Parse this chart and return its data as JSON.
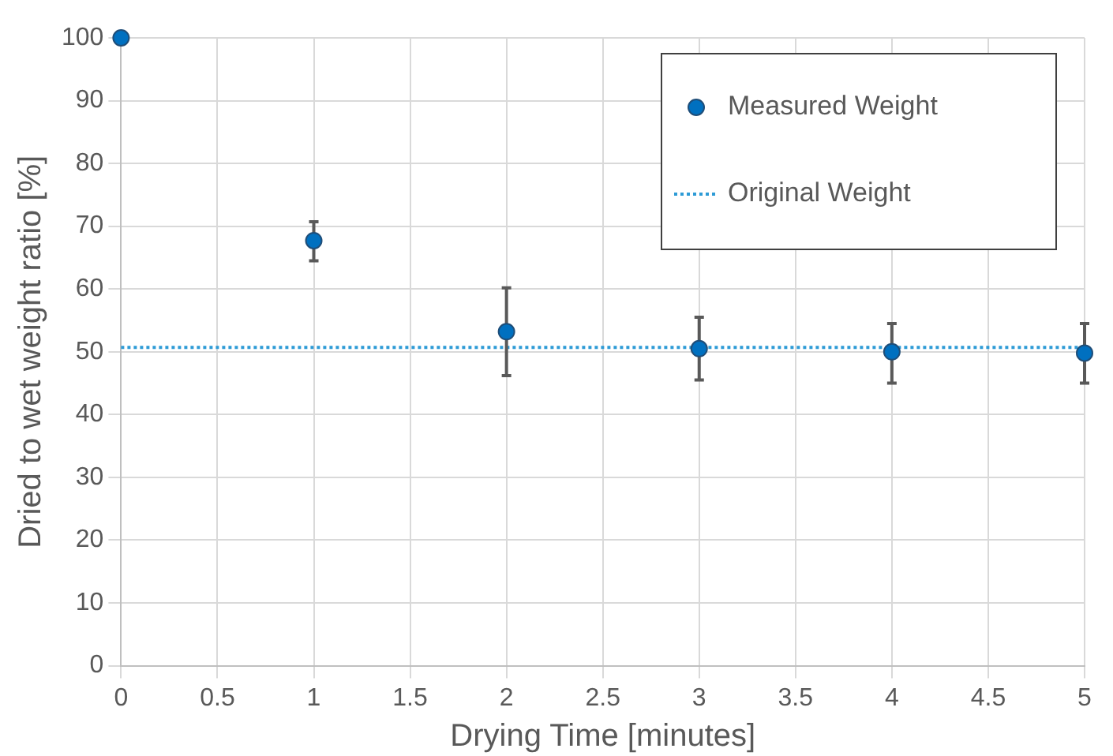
{
  "chart_data": {
    "type": "scatter",
    "xlabel": "Drying Time [minutes]",
    "ylabel": "Dried to wet weight ratio [%]",
    "x": [
      0,
      1,
      2,
      3,
      4,
      5
    ],
    "series": [
      {
        "name": "Measured Weight",
        "color": "#0070c0",
        "values": [
          100,
          67.7,
          53.2,
          50.5,
          50.0,
          49.8
        ],
        "errors": [
          null,
          [
            64.5,
            70.7
          ],
          [
            46.2,
            60.2
          ],
          [
            45.5,
            55.5
          ],
          [
            45.0,
            54.5
          ],
          [
            45.0,
            54.5
          ]
        ]
      }
    ],
    "ref_lines": [
      {
        "axis": "y",
        "value": 50.7,
        "label": "Original Weight",
        "color": "#2e9bd6",
        "line_style": "dotted"
      }
    ],
    "xlim": [
      0,
      5
    ],
    "xticks": [
      0,
      0.5,
      1,
      1.5,
      2,
      2.5,
      3,
      3.5,
      4,
      4.5,
      5
    ],
    "ylim": [
      0,
      100
    ],
    "yticks": [
      0,
      10,
      20,
      30,
      40,
      50,
      60,
      70,
      80,
      90,
      100
    ],
    "grid": true,
    "legend": "top right",
    "marker": "circle"
  }
}
